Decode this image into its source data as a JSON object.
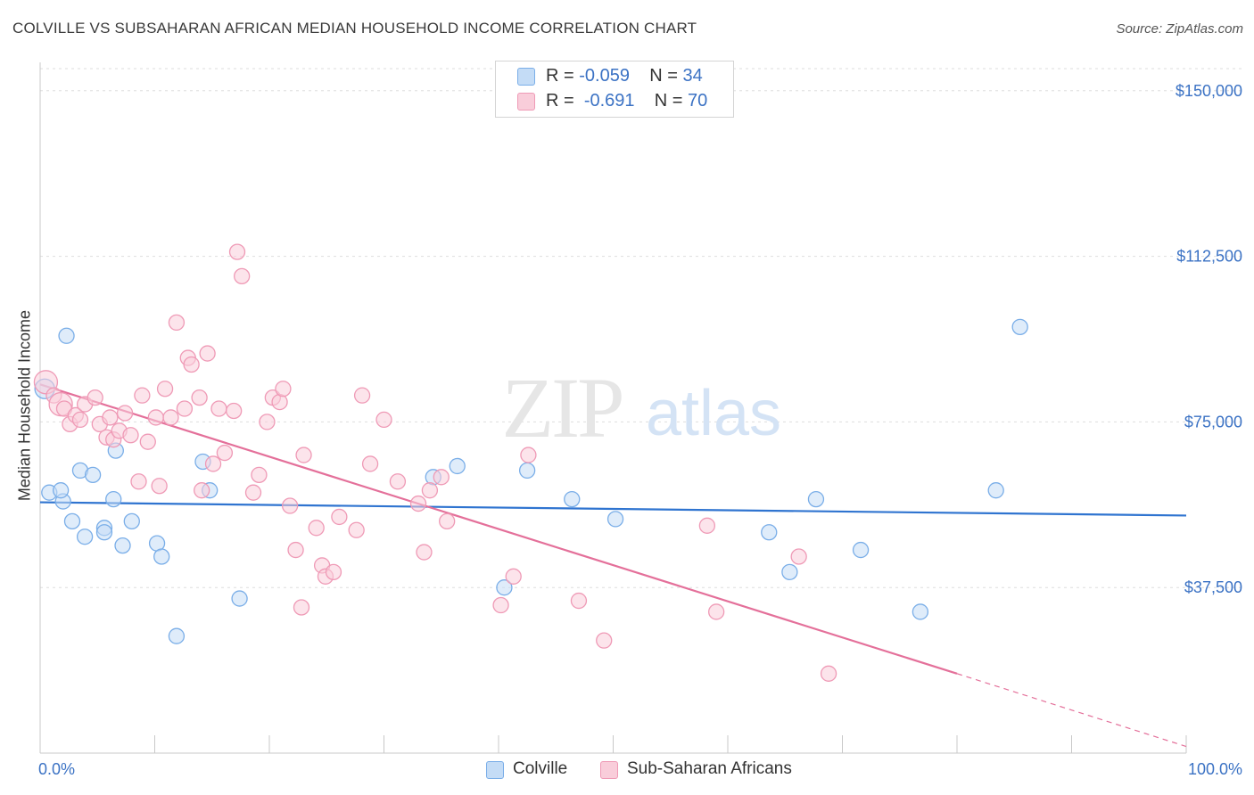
{
  "header": {
    "title": "COLVILLE VS SUBSAHARAN AFRICAN MEDIAN HOUSEHOLD INCOME CORRELATION CHART",
    "source": "Source: ZipAtlas.com"
  },
  "watermark": {
    "zip": "ZIP",
    "atlas": "atlas"
  },
  "legend": {
    "rows": [
      {
        "r_label": "R =",
        "r_value": "-0.059",
        "n_label": "N =",
        "n_value": "34",
        "color": "#a8c8f0"
      },
      {
        "r_label": "R =",
        "r_value": "-0.691",
        "n_label": "N =",
        "n_value": "70",
        "color": "#f5b8cc"
      }
    ]
  },
  "bottom_legend": {
    "items": [
      {
        "label": "Colville",
        "color": "#a8c8f0"
      },
      {
        "label": "Sub-Saharan Africans",
        "color": "#f5b8cc"
      }
    ]
  },
  "chart_data": {
    "type": "scatter",
    "title": "COLVILLE VS SUBSAHARAN AFRICAN MEDIAN HOUSEHOLD INCOME CORRELATION CHART",
    "ylabel": "Median Household Income",
    "xlabel": "",
    "xlim": [
      0,
      100
    ],
    "ylim": [
      0,
      155000
    ],
    "x_tick_labels": [
      "0.0%",
      "100.0%"
    ],
    "y_ticks": [
      37500,
      75000,
      112500,
      150000
    ],
    "y_tick_labels": [
      "$37,500",
      "$75,000",
      "$112,500",
      "$150,000"
    ],
    "grid": true,
    "legend_position": "top-center",
    "series": [
      {
        "name": "Colville",
        "color": "#7aaee8",
        "fill": "#c4dcf6",
        "trend": {
          "x": [
            0,
            100
          ],
          "y": [
            56800,
            53800
          ],
          "color": "#2f74d0"
        },
        "points": [
          [
            0.8,
            59000
          ],
          [
            2.0,
            57000
          ],
          [
            1.8,
            59500
          ],
          [
            2.3,
            94500
          ],
          [
            2.8,
            52500
          ],
          [
            3.5,
            64000
          ],
          [
            3.9,
            49000
          ],
          [
            4.6,
            63000
          ],
          [
            5.6,
            51000
          ],
          [
            5.6,
            50000
          ],
          [
            6.4,
            57500
          ],
          [
            6.6,
            68500
          ],
          [
            7.2,
            47000
          ],
          [
            8.0,
            52500
          ],
          [
            10.2,
            47500
          ],
          [
            10.6,
            44500
          ],
          [
            11.9,
            26500
          ],
          [
            14.2,
            66000
          ],
          [
            14.8,
            59500
          ],
          [
            17.4,
            35000
          ],
          [
            34.3,
            62500
          ],
          [
            36.4,
            65000
          ],
          [
            40.5,
            37500
          ],
          [
            42.5,
            64000
          ],
          [
            46.4,
            57500
          ],
          [
            50.2,
            53000
          ],
          [
            63.6,
            50000
          ],
          [
            65.4,
            41000
          ],
          [
            67.7,
            57500
          ],
          [
            71.6,
            46000
          ],
          [
            76.8,
            32000
          ],
          [
            83.4,
            59500
          ],
          [
            85.5,
            96500
          ],
          [
            0.4,
            82500
          ]
        ],
        "sizes": {
          "0.4,82500": 22
        }
      },
      {
        "name": "Sub-Saharan Africans",
        "color": "#ef9ab6",
        "fill": "#f9cdda",
        "trend": {
          "x": [
            0,
            80
          ],
          "y": [
            83500,
            18000
          ],
          "color": "#e4709a",
          "dashed_extension": {
            "x": [
              80,
              100
            ],
            "y": [
              18000,
              1500
            ]
          }
        },
        "points": [
          [
            0.5,
            84000
          ],
          [
            1.2,
            81000
          ],
          [
            1.8,
            79000
          ],
          [
            2.1,
            78000
          ],
          [
            2.6,
            74500
          ],
          [
            3.1,
            76500
          ],
          [
            3.5,
            75500
          ],
          [
            3.9,
            79000
          ],
          [
            4.8,
            80500
          ],
          [
            5.2,
            74500
          ],
          [
            5.8,
            71500
          ],
          [
            6.1,
            76000
          ],
          [
            6.4,
            71000
          ],
          [
            6.9,
            73000
          ],
          [
            7.4,
            77000
          ],
          [
            7.9,
            72000
          ],
          [
            8.6,
            61500
          ],
          [
            8.9,
            81000
          ],
          [
            9.4,
            70500
          ],
          [
            10.1,
            76000
          ],
          [
            10.4,
            60500
          ],
          [
            10.9,
            82500
          ],
          [
            11.4,
            76000
          ],
          [
            11.9,
            97500
          ],
          [
            12.6,
            78000
          ],
          [
            12.9,
            89500
          ],
          [
            13.2,
            88000
          ],
          [
            13.9,
            80500
          ],
          [
            14.1,
            59500
          ],
          [
            14.6,
            90500
          ],
          [
            15.1,
            65500
          ],
          [
            15.6,
            78000
          ],
          [
            16.1,
            68000
          ],
          [
            16.9,
            77500
          ],
          [
            17.2,
            113500
          ],
          [
            17.6,
            108000
          ],
          [
            18.6,
            59000
          ],
          [
            19.1,
            63000
          ],
          [
            19.8,
            75000
          ],
          [
            20.3,
            80500
          ],
          [
            20.9,
            79500
          ],
          [
            21.2,
            82500
          ],
          [
            21.8,
            56000
          ],
          [
            22.3,
            46000
          ],
          [
            22.8,
            33000
          ],
          [
            23.0,
            67500
          ],
          [
            24.1,
            51000
          ],
          [
            24.6,
            42500
          ],
          [
            24.9,
            40000
          ],
          [
            25.6,
            41000
          ],
          [
            26.1,
            53500
          ],
          [
            27.6,
            50500
          ],
          [
            28.1,
            81000
          ],
          [
            28.8,
            65500
          ],
          [
            30.0,
            75500
          ],
          [
            31.2,
            61500
          ],
          [
            33.0,
            56500
          ],
          [
            33.5,
            45500
          ],
          [
            34.0,
            59500
          ],
          [
            35.0,
            62500
          ],
          [
            35.5,
            52500
          ],
          [
            40.2,
            33500
          ],
          [
            41.3,
            40000
          ],
          [
            42.6,
            67500
          ],
          [
            47.0,
            34500
          ],
          [
            49.2,
            25500
          ],
          [
            58.2,
            51500
          ],
          [
            59.0,
            32000
          ],
          [
            66.2,
            44500
          ],
          [
            68.8,
            18000
          ]
        ],
        "large_points": [
          [
            0.5,
            84000
          ],
          [
            1.8,
            79000
          ]
        ]
      }
    ]
  }
}
